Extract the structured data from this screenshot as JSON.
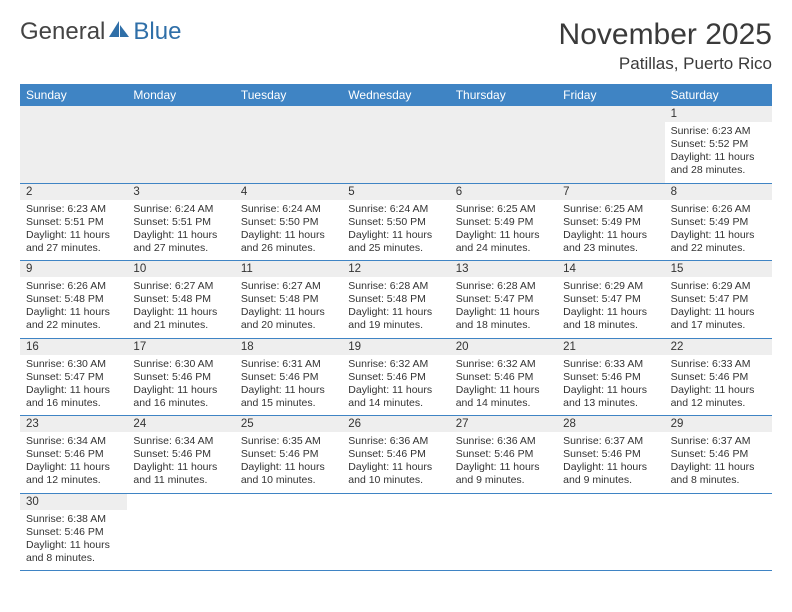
{
  "brand": {
    "general": "General",
    "blue": "Blue"
  },
  "title": "November 2025",
  "location": "Patillas, Puerto Rico",
  "colors": {
    "header_bg": "#3f84c4",
    "header_text": "#ffffff",
    "daynum_bg": "#eeeeee",
    "row_border": "#3f84c4",
    "text": "#333333",
    "background": "#ffffff",
    "brand_blue": "#2f6fa8"
  },
  "typography": {
    "title_fontsize": 30,
    "location_fontsize": 17,
    "dayname_fontsize": 12,
    "daynum_fontsize": 11.5,
    "body_fontsize": 10.5,
    "logo_fontsize": 24
  },
  "daynames": [
    "Sunday",
    "Monday",
    "Tuesday",
    "Wednesday",
    "Thursday",
    "Friday",
    "Saturday"
  ],
  "weeks": [
    [
      null,
      null,
      null,
      null,
      null,
      null,
      {
        "n": "1",
        "sr": "Sunrise: 6:23 AM",
        "ss": "Sunset: 5:52 PM",
        "d1": "Daylight: 11 hours",
        "d2": "and 28 minutes."
      }
    ],
    [
      {
        "n": "2",
        "sr": "Sunrise: 6:23 AM",
        "ss": "Sunset: 5:51 PM",
        "d1": "Daylight: 11 hours",
        "d2": "and 27 minutes."
      },
      {
        "n": "3",
        "sr": "Sunrise: 6:24 AM",
        "ss": "Sunset: 5:51 PM",
        "d1": "Daylight: 11 hours",
        "d2": "and 27 minutes."
      },
      {
        "n": "4",
        "sr": "Sunrise: 6:24 AM",
        "ss": "Sunset: 5:50 PM",
        "d1": "Daylight: 11 hours",
        "d2": "and 26 minutes."
      },
      {
        "n": "5",
        "sr": "Sunrise: 6:24 AM",
        "ss": "Sunset: 5:50 PM",
        "d1": "Daylight: 11 hours",
        "d2": "and 25 minutes."
      },
      {
        "n": "6",
        "sr": "Sunrise: 6:25 AM",
        "ss": "Sunset: 5:49 PM",
        "d1": "Daylight: 11 hours",
        "d2": "and 24 minutes."
      },
      {
        "n": "7",
        "sr": "Sunrise: 6:25 AM",
        "ss": "Sunset: 5:49 PM",
        "d1": "Daylight: 11 hours",
        "d2": "and 23 minutes."
      },
      {
        "n": "8",
        "sr": "Sunrise: 6:26 AM",
        "ss": "Sunset: 5:49 PM",
        "d1": "Daylight: 11 hours",
        "d2": "and 22 minutes."
      }
    ],
    [
      {
        "n": "9",
        "sr": "Sunrise: 6:26 AM",
        "ss": "Sunset: 5:48 PM",
        "d1": "Daylight: 11 hours",
        "d2": "and 22 minutes."
      },
      {
        "n": "10",
        "sr": "Sunrise: 6:27 AM",
        "ss": "Sunset: 5:48 PM",
        "d1": "Daylight: 11 hours",
        "d2": "and 21 minutes."
      },
      {
        "n": "11",
        "sr": "Sunrise: 6:27 AM",
        "ss": "Sunset: 5:48 PM",
        "d1": "Daylight: 11 hours",
        "d2": "and 20 minutes."
      },
      {
        "n": "12",
        "sr": "Sunrise: 6:28 AM",
        "ss": "Sunset: 5:48 PM",
        "d1": "Daylight: 11 hours",
        "d2": "and 19 minutes."
      },
      {
        "n": "13",
        "sr": "Sunrise: 6:28 AM",
        "ss": "Sunset: 5:47 PM",
        "d1": "Daylight: 11 hours",
        "d2": "and 18 minutes."
      },
      {
        "n": "14",
        "sr": "Sunrise: 6:29 AM",
        "ss": "Sunset: 5:47 PM",
        "d1": "Daylight: 11 hours",
        "d2": "and 18 minutes."
      },
      {
        "n": "15",
        "sr": "Sunrise: 6:29 AM",
        "ss": "Sunset: 5:47 PM",
        "d1": "Daylight: 11 hours",
        "d2": "and 17 minutes."
      }
    ],
    [
      {
        "n": "16",
        "sr": "Sunrise: 6:30 AM",
        "ss": "Sunset: 5:47 PM",
        "d1": "Daylight: 11 hours",
        "d2": "and 16 minutes."
      },
      {
        "n": "17",
        "sr": "Sunrise: 6:30 AM",
        "ss": "Sunset: 5:46 PM",
        "d1": "Daylight: 11 hours",
        "d2": "and 16 minutes."
      },
      {
        "n": "18",
        "sr": "Sunrise: 6:31 AM",
        "ss": "Sunset: 5:46 PM",
        "d1": "Daylight: 11 hours",
        "d2": "and 15 minutes."
      },
      {
        "n": "19",
        "sr": "Sunrise: 6:32 AM",
        "ss": "Sunset: 5:46 PM",
        "d1": "Daylight: 11 hours",
        "d2": "and 14 minutes."
      },
      {
        "n": "20",
        "sr": "Sunrise: 6:32 AM",
        "ss": "Sunset: 5:46 PM",
        "d1": "Daylight: 11 hours",
        "d2": "and 14 minutes."
      },
      {
        "n": "21",
        "sr": "Sunrise: 6:33 AM",
        "ss": "Sunset: 5:46 PM",
        "d1": "Daylight: 11 hours",
        "d2": "and 13 minutes."
      },
      {
        "n": "22",
        "sr": "Sunrise: 6:33 AM",
        "ss": "Sunset: 5:46 PM",
        "d1": "Daylight: 11 hours",
        "d2": "and 12 minutes."
      }
    ],
    [
      {
        "n": "23",
        "sr": "Sunrise: 6:34 AM",
        "ss": "Sunset: 5:46 PM",
        "d1": "Daylight: 11 hours",
        "d2": "and 12 minutes."
      },
      {
        "n": "24",
        "sr": "Sunrise: 6:34 AM",
        "ss": "Sunset: 5:46 PM",
        "d1": "Daylight: 11 hours",
        "d2": "and 11 minutes."
      },
      {
        "n": "25",
        "sr": "Sunrise: 6:35 AM",
        "ss": "Sunset: 5:46 PM",
        "d1": "Daylight: 11 hours",
        "d2": "and 10 minutes."
      },
      {
        "n": "26",
        "sr": "Sunrise: 6:36 AM",
        "ss": "Sunset: 5:46 PM",
        "d1": "Daylight: 11 hours",
        "d2": "and 10 minutes."
      },
      {
        "n": "27",
        "sr": "Sunrise: 6:36 AM",
        "ss": "Sunset: 5:46 PM",
        "d1": "Daylight: 11 hours",
        "d2": "and 9 minutes."
      },
      {
        "n": "28",
        "sr": "Sunrise: 6:37 AM",
        "ss": "Sunset: 5:46 PM",
        "d1": "Daylight: 11 hours",
        "d2": "and 9 minutes."
      },
      {
        "n": "29",
        "sr": "Sunrise: 6:37 AM",
        "ss": "Sunset: 5:46 PM",
        "d1": "Daylight: 11 hours",
        "d2": "and 8 minutes."
      }
    ],
    [
      {
        "n": "30",
        "sr": "Sunrise: 6:38 AM",
        "ss": "Sunset: 5:46 PM",
        "d1": "Daylight: 11 hours",
        "d2": "and 8 minutes."
      },
      null,
      null,
      null,
      null,
      null,
      null
    ]
  ]
}
